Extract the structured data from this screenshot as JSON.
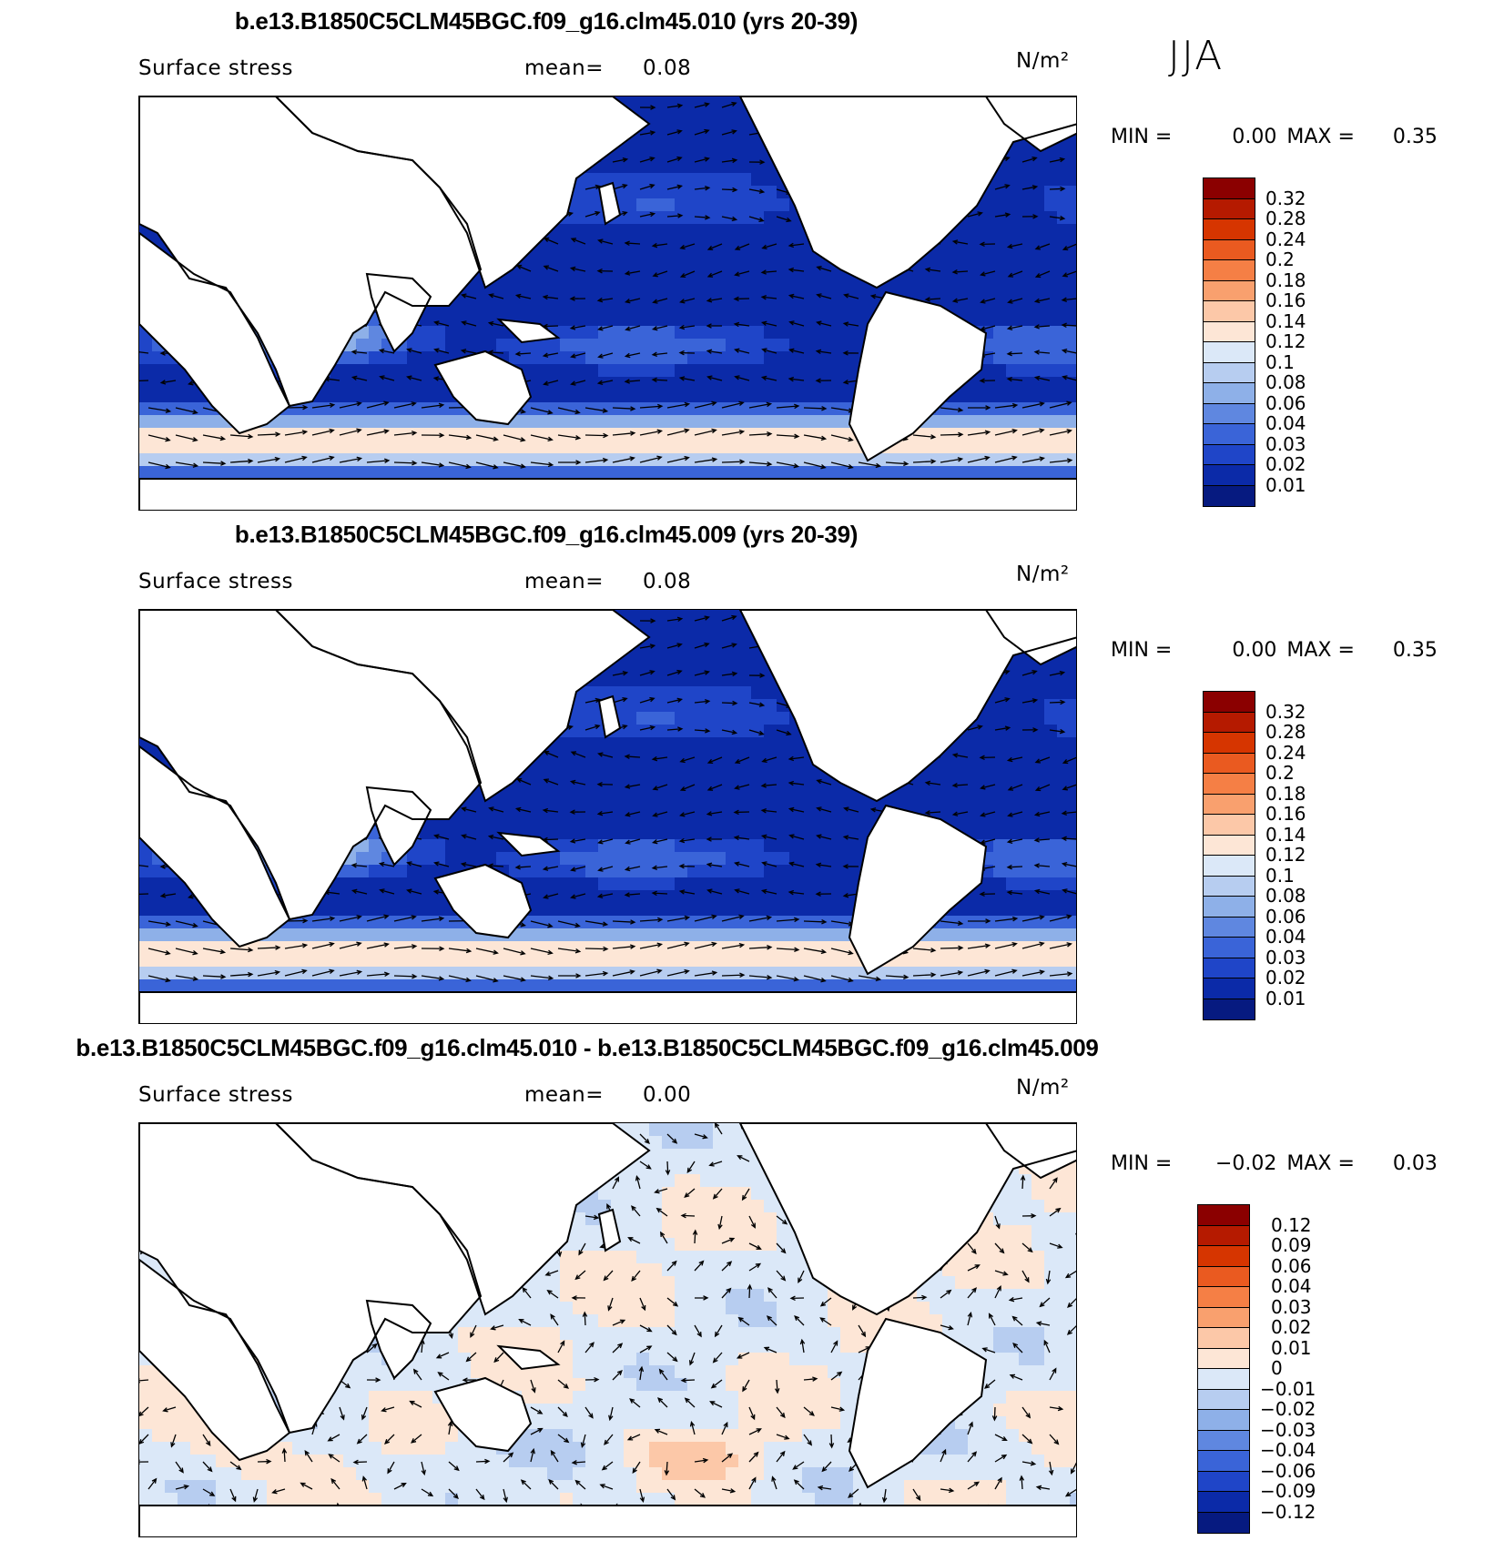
{
  "season": "JJA",
  "panels": [
    {
      "title": "b.e13.B1850C5CLM45BGC.f09_g16.clm45.010 (yrs 20-39)",
      "variable": "Surface stress",
      "mean_label": "mean=",
      "mean_value": "0.08",
      "units": "N/m²",
      "min_label": "MIN =",
      "min_value": "0.00",
      "max_label": "MAX =",
      "max_value": "0.35",
      "colorbar_labels": [
        "0.32",
        "0.28",
        "0.24",
        "0.2",
        "0.18",
        "0.16",
        "0.14",
        "0.12",
        "0.1",
        "0.08",
        "0.06",
        "0.04",
        "0.03",
        "0.02",
        "0.01"
      ],
      "colorbar_colors": [
        "#8b0000",
        "#b51a00",
        "#d63500",
        "#ea5a20",
        "#f57f45",
        "#f9a06e",
        "#fcc8a8",
        "#fde6d6",
        "#dbe8f8",
        "#b7cdf0",
        "#8eb0e8",
        "#5f87e0",
        "#3a64d8",
        "#1f45c8",
        "#0b2aa8",
        "#061a80"
      ]
    },
    {
      "title": "b.e13.B1850C5CLM45BGC.f09_g16.clm45.009 (yrs 20-39)",
      "variable": "Surface stress",
      "mean_label": "mean=",
      "mean_value": "0.08",
      "units": "N/m²",
      "min_label": "MIN =",
      "min_value": "0.00",
      "max_label": "MAX =",
      "max_value": "0.35",
      "colorbar_labels": [
        "0.32",
        "0.28",
        "0.24",
        "0.2",
        "0.18",
        "0.16",
        "0.14",
        "0.12",
        "0.1",
        "0.08",
        "0.06",
        "0.04",
        "0.03",
        "0.02",
        "0.01"
      ],
      "colorbar_colors": [
        "#8b0000",
        "#b51a00",
        "#d63500",
        "#ea5a20",
        "#f57f45",
        "#f9a06e",
        "#fcc8a8",
        "#fde6d6",
        "#dbe8f8",
        "#b7cdf0",
        "#8eb0e8",
        "#5f87e0",
        "#3a64d8",
        "#1f45c8",
        "#0b2aa8",
        "#061a80"
      ]
    },
    {
      "title": "b.e13.B1850C5CLM45BGC.f09_g16.clm45.010 - b.e13.B1850C5CLM45BGC.f09_g16.clm45.009",
      "variable": "Surface stress",
      "mean_label": "mean=",
      "mean_value": "0.00",
      "units": "N/m²",
      "min_label": "MIN =",
      "min_value": "−0.02",
      "max_label": "MAX =",
      "max_value": "0.03",
      "colorbar_labels": [
        "0.12",
        "0.09",
        "0.06",
        "0.04",
        "0.03",
        "0.02",
        "0.01",
        "0",
        "−0.01",
        "−0.02",
        "−0.03",
        "−0.04",
        "−0.06",
        "−0.09",
        "−0.12"
      ],
      "colorbar_colors": [
        "#8b0000",
        "#b51a00",
        "#d63500",
        "#ea5a20",
        "#f57f45",
        "#f9a06e",
        "#fcc8a8",
        "#fde6d6",
        "#dbe8f8",
        "#b7cdf0",
        "#8eb0e8",
        "#5f87e0",
        "#3a64d8",
        "#1f45c8",
        "#0b2aa8",
        "#061a80"
      ]
    }
  ]
}
